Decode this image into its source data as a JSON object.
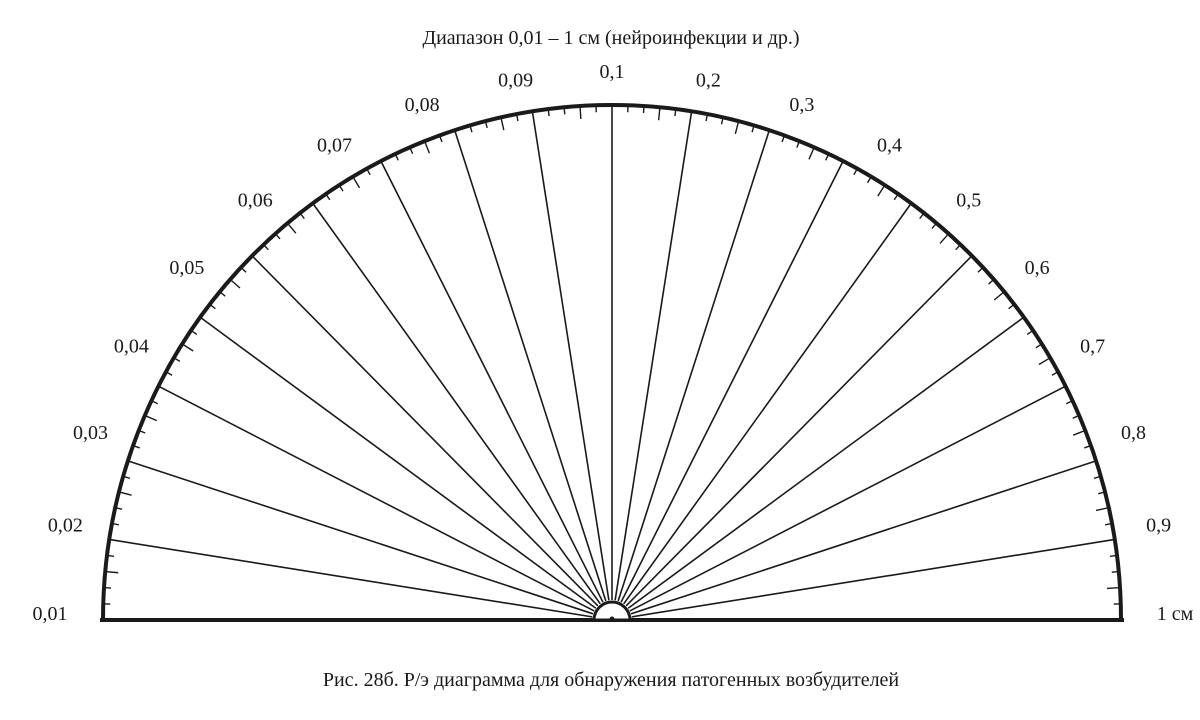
{
  "heading": "Диапазон 0,01 – 1 см (нейроинфекции и др.)",
  "caption": "Рис. 28б. Р/э диаграмма для обнаружения патогенных возбудителей",
  "scale": {
    "sector_count": 20,
    "minor_ticks_per_sector": 5,
    "left_labels": [
      "0,01",
      "0,02",
      "0,03",
      "0,04",
      "0,05",
      "0,06",
      "0,07",
      "0,08",
      "0,09"
    ],
    "top_label": "0,1",
    "right_labels": [
      "0,2",
      "0,3",
      "0,4",
      "0,5",
      "0,6",
      "0,7",
      "0,8",
      "0,9"
    ],
    "end_label": "1 см"
  },
  "colors": {
    "ink": "#1a1a1a",
    "background": "#ffffff"
  }
}
